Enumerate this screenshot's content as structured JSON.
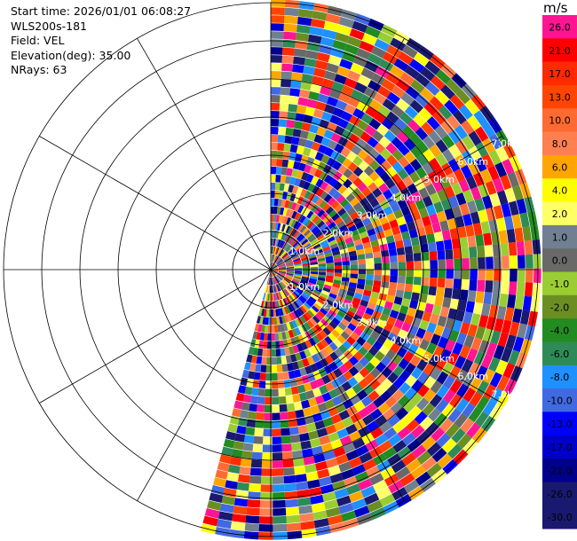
{
  "header": {
    "start_time": "Start time: 2026/01/01 06:08:27",
    "instrument": "WLS200s-181",
    "field": "Field: VEL",
    "elevation": "Elevation(deg): 35.00",
    "nrays": "NRays: 63"
  },
  "colorbar": {
    "unit": "m/s",
    "levels": [
      {
        "label": "26.0",
        "color": "#ff1493"
      },
      {
        "label": "21.0",
        "color": "#ff0000"
      },
      {
        "label": "17.0",
        "color": "#ff2a00"
      },
      {
        "label": "13.0",
        "color": "#ff4500"
      },
      {
        "label": "10.0",
        "color": "#ff6a33"
      },
      {
        "label": "8.0",
        "color": "#ff7f50"
      },
      {
        "label": "6.0",
        "color": "#ffa500"
      },
      {
        "label": "4.0",
        "color": "#ffff00"
      },
      {
        "label": "2.0",
        "color": "#ffff66"
      },
      {
        "label": "1.0",
        "color": "#708090"
      },
      {
        "label": "0.0",
        "color": "#696969"
      },
      {
        "label": "-1.0",
        "color": "#9acd32"
      },
      {
        "label": "-2.0",
        "color": "#6b8e23"
      },
      {
        "label": "-4.0",
        "color": "#228b22"
      },
      {
        "label": "-6.0",
        "color": "#2e8b57"
      },
      {
        "label": "-8.0",
        "color": "#1e90ff"
      },
      {
        "label": "-10.0",
        "color": "#4169e1"
      },
      {
        "label": "-13.0",
        "color": "#0000ff"
      },
      {
        "label": "-17.0",
        "color": "#0000cd"
      },
      {
        "label": "-21.0",
        "color": "#00008b"
      },
      {
        "label": "-26.0",
        "color": "#191970"
      },
      {
        "label": "-30.0",
        "color": "#191970"
      }
    ]
  },
  "chart_data": {
    "type": "heatmap",
    "projection": "polar PPI",
    "field": "VEL",
    "units": "m/s",
    "nrays": 63,
    "azimuth_range_deg": [
      0,
      195
    ],
    "range_rings_km": [
      1,
      2,
      3,
      4,
      5,
      6,
      7
    ],
    "ring_labels": [
      "1.0km",
      "2.0km",
      "3.0km",
      "4.0km",
      "5.0km",
      "6.0km",
      "7.0km"
    ],
    "spokes_deg": [
      0,
      30,
      60,
      90,
      120,
      150,
      180,
      210,
      240,
      270,
      300,
      330
    ],
    "grid": true
  }
}
